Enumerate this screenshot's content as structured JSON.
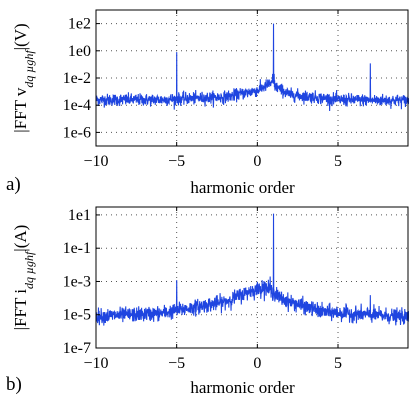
{
  "chart_data": [
    {
      "type": "line",
      "panel_label": "a)",
      "title": "",
      "xlabel": "harmonic order",
      "ylabel": {
        "prefix": "|FFT v",
        "subscript": "dq µghf",
        "suffix": "|(V)"
      },
      "scale_y": "log",
      "xlim": [
        -10,
        9.4
      ],
      "ylim": [
        1e-07,
        1000.0
      ],
      "grid": true,
      "line_color": "#1f45e0",
      "xticks": [
        -10,
        -5,
        0,
        5
      ],
      "xtick_labels": [
        "−10",
        "−5",
        "0",
        "5"
      ],
      "yticks": [
        100.0,
        1.0,
        0.01,
        0.0001,
        1e-06
      ],
      "ytick_labels": [
        "1e2",
        "1e0",
        "1e-2",
        "1e-4",
        "1e-6"
      ],
      "spectrum": {
        "x_range": [
          -10,
          9.4
        ],
        "noise_floor": [
          [
            -10,
            0.00025
          ],
          [
            -6,
            0.00025
          ],
          [
            -2,
            0.0004
          ],
          [
            0,
            0.0012
          ],
          [
            0.8,
            0.004
          ],
          [
            2,
            0.0006
          ],
          [
            5,
            0.00025
          ],
          [
            9.4,
            0.00022
          ]
        ],
        "peaks": [
          {
            "x": 1,
            "y": 100
          },
          {
            "x": -5,
            "y": 0.8
          },
          {
            "x": 7,
            "y": 0.12
          },
          {
            "x": 0.95,
            "y": 0.02
          },
          {
            "x": 1.05,
            "y": 0.02
          }
        ]
      }
    },
    {
      "type": "line",
      "panel_label": "b)",
      "title": "",
      "xlabel": "harmonic order",
      "ylabel": {
        "prefix": "|FFT i",
        "subscript": "dq µghf",
        "suffix": "|(A)"
      },
      "scale_y": "log",
      "xlim": [
        -10,
        9.4
      ],
      "ylim": [
        1e-07,
        30
      ],
      "grid": true,
      "line_color": "#1f45e0",
      "xticks": [
        -10,
        -5,
        0,
        5
      ],
      "xtick_labels": [
        "−10",
        "−5",
        "0",
        "5"
      ],
      "yticks": [
        10,
        0.1,
        0.001,
        1e-05,
        1e-07
      ],
      "ytick_labels": [
        "1e1",
        "1e-1",
        "1e-3",
        "1e-5",
        "1e-7"
      ],
      "spectrum": {
        "x_range": [
          -10,
          9.4
        ],
        "noise_floor": [
          [
            -10,
            8e-06
          ],
          [
            -6,
            1.2e-05
          ],
          [
            -2,
            6e-05
          ],
          [
            -0.5,
            0.00025
          ],
          [
            0.5,
            0.00045
          ],
          [
            1.6,
            8e-05
          ],
          [
            4,
            1.5e-05
          ],
          [
            9.4,
            7e-06
          ]
        ],
        "peaks": [
          {
            "x": 1,
            "y": 12
          },
          {
            "x": -5,
            "y": 0.0012
          },
          {
            "x": 0.8,
            "y": 0.002
          },
          {
            "x": 0.3,
            "y": 0.0012
          },
          {
            "x": 7,
            "y": 0.00015
          }
        ]
      }
    }
  ]
}
